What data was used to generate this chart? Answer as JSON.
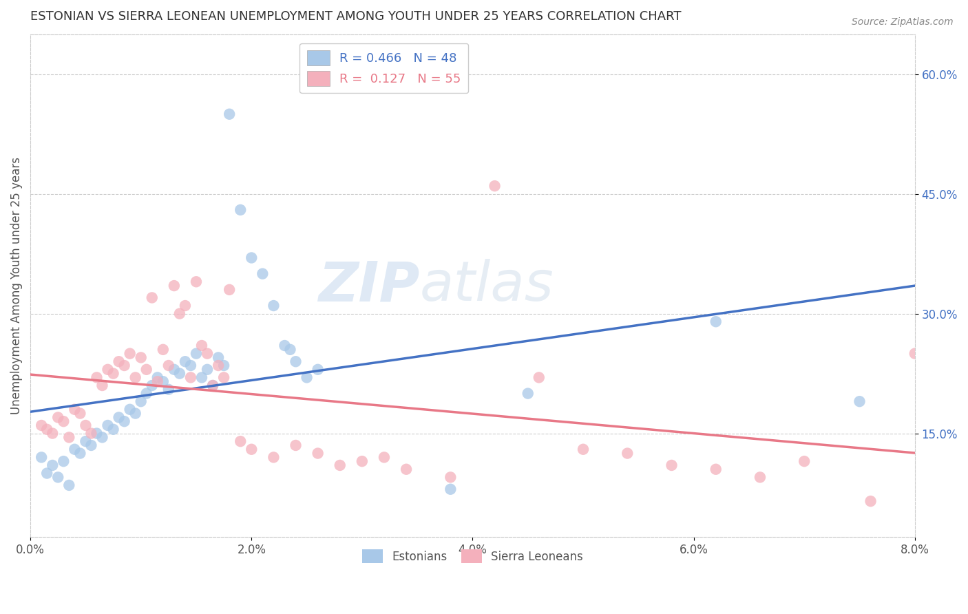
{
  "title": "ESTONIAN VS SIERRA LEONEAN UNEMPLOYMENT AMONG YOUTH UNDER 25 YEARS CORRELATION CHART",
  "source": "Source: ZipAtlas.com",
  "ylabel": "Unemployment Among Youth under 25 years",
  "xlabel_ticks": [
    "0.0%",
    "2.0%",
    "4.0%",
    "6.0%",
    "8.0%"
  ],
  "xlabel_vals": [
    0.0,
    2.0,
    4.0,
    6.0,
    8.0
  ],
  "ylabel_right_ticks": [
    "15.0%",
    "30.0%",
    "45.0%",
    "60.0%"
  ],
  "ylabel_right_vals": [
    15.0,
    30.0,
    45.0,
    60.0
  ],
  "xmin": 0.0,
  "xmax": 8.0,
  "ymin": 2.0,
  "ymax": 65.0,
  "blue_scatter_color": "#a8c8e8",
  "pink_scatter_color": "#f4b0bc",
  "blue_line_color": "#4472c4",
  "pink_line_color": "#e87887",
  "estonians_x": [
    0.1,
    0.15,
    0.2,
    0.25,
    0.3,
    0.35,
    0.4,
    0.45,
    0.5,
    0.55,
    0.6,
    0.65,
    0.7,
    0.75,
    0.8,
    0.85,
    0.9,
    0.95,
    1.0,
    1.05,
    1.1,
    1.15,
    1.2,
    1.25,
    1.3,
    1.35,
    1.4,
    1.45,
    1.5,
    1.55,
    1.6,
    1.65,
    1.7,
    1.75,
    1.8,
    1.9,
    2.0,
    2.1,
    2.2,
    2.3,
    2.35,
    2.4,
    2.5,
    2.6,
    3.8,
    4.5,
    6.2,
    7.5
  ],
  "estonians_y": [
    12.0,
    10.0,
    11.0,
    9.5,
    11.5,
    8.5,
    13.0,
    12.5,
    14.0,
    13.5,
    15.0,
    14.5,
    16.0,
    15.5,
    17.0,
    16.5,
    18.0,
    17.5,
    19.0,
    20.0,
    21.0,
    22.0,
    21.5,
    20.5,
    23.0,
    22.5,
    24.0,
    23.5,
    25.0,
    22.0,
    23.0,
    21.0,
    24.5,
    23.5,
    55.0,
    43.0,
    37.0,
    35.0,
    31.0,
    26.0,
    25.5,
    24.0,
    22.0,
    23.0,
    8.0,
    20.0,
    29.0,
    19.0
  ],
  "sierra_x": [
    0.1,
    0.15,
    0.2,
    0.25,
    0.3,
    0.35,
    0.4,
    0.45,
    0.5,
    0.55,
    0.6,
    0.65,
    0.7,
    0.75,
    0.8,
    0.85,
    0.9,
    0.95,
    1.0,
    1.05,
    1.1,
    1.15,
    1.2,
    1.25,
    1.3,
    1.35,
    1.4,
    1.45,
    1.5,
    1.55,
    1.6,
    1.65,
    1.7,
    1.75,
    1.8,
    1.9,
    2.0,
    2.2,
    2.4,
    2.6,
    2.8,
    3.0,
    3.2,
    3.4,
    3.8,
    4.2,
    4.6,
    5.0,
    5.4,
    5.8,
    6.2,
    6.6,
    7.0,
    7.6,
    8.0
  ],
  "sierra_y": [
    16.0,
    15.5,
    15.0,
    17.0,
    16.5,
    14.5,
    18.0,
    17.5,
    16.0,
    15.0,
    22.0,
    21.0,
    23.0,
    22.5,
    24.0,
    23.5,
    25.0,
    22.0,
    24.5,
    23.0,
    32.0,
    21.5,
    25.5,
    23.5,
    33.5,
    30.0,
    31.0,
    22.0,
    34.0,
    26.0,
    25.0,
    21.0,
    23.5,
    22.0,
    33.0,
    14.0,
    13.0,
    12.0,
    13.5,
    12.5,
    11.0,
    11.5,
    12.0,
    10.5,
    9.5,
    46.0,
    22.0,
    13.0,
    12.5,
    11.0,
    10.5,
    9.5,
    11.5,
    6.5,
    25.0
  ],
  "watermark_zip": "ZIP",
  "watermark_atlas": "atlas",
  "background_color": "#ffffff",
  "grid_color": "#cccccc",
  "legend_top_blue_text": "R = 0.466   N = 48",
  "legend_top_pink_text": "R =  0.127   N = 55",
  "legend_blue_color": "#a8c8e8",
  "legend_pink_color": "#f4b0bc",
  "legend_text_blue": "#4472c4",
  "legend_text_pink": "#e87887",
  "bottom_legend_labels": [
    "Estonians",
    "Sierra Leoneans"
  ]
}
